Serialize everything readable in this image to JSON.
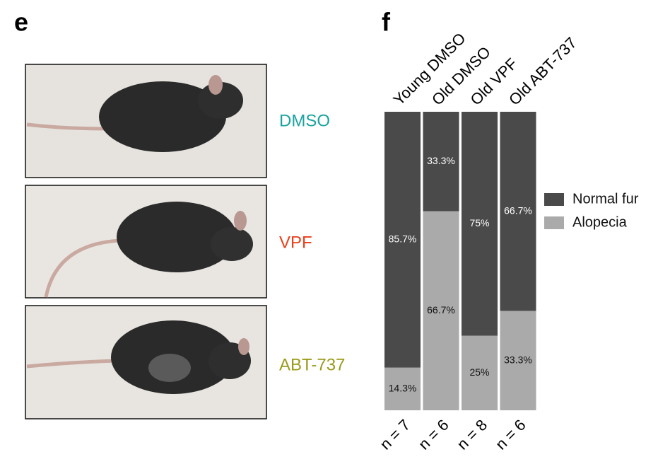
{
  "panel_labels": [
    "e",
    "f"
  ],
  "photo_labels": [
    {
      "text": "DMSO",
      "color": "#1aa3a0"
    },
    {
      "text": "VPF",
      "color": "#e8401c"
    },
    {
      "text": "ABT-737",
      "color": "#9a9a1a"
    }
  ],
  "chart_data": {
    "type": "bar",
    "stacked": true,
    "categories": [
      "Young DMSO",
      "Old DMSO",
      "Old VPF",
      "Old ABT-737"
    ],
    "counts": [
      "n = 7",
      "n = 6",
      "n = 8",
      "n = 6"
    ],
    "series": [
      {
        "name": "Alopecia",
        "color": "#aaaaaa",
        "label_color": "#111111",
        "values": [
          14.3,
          66.7,
          25,
          33.3
        ],
        "value_labels": [
          "14.3%",
          "66.7%",
          "25%",
          "33.3%"
        ]
      },
      {
        "name": "Normal fur",
        "color": "#4a4a4a",
        "label_color": "#ffffff",
        "values": [
          85.7,
          33.3,
          75,
          66.7
        ],
        "value_labels": [
          "85.7%",
          "33.3%",
          "75%",
          "66.7%"
        ]
      }
    ],
    "legend": "right"
  }
}
